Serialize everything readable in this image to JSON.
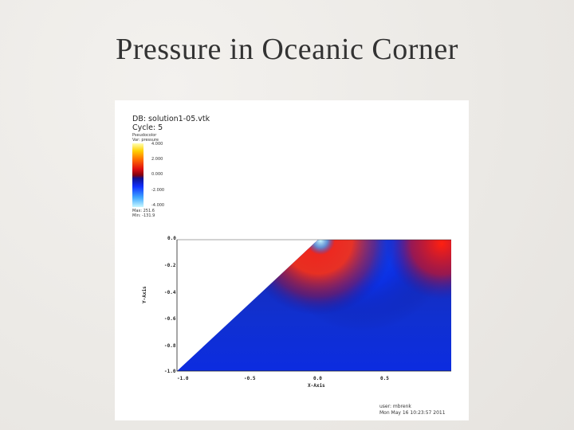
{
  "slide": {
    "title": "Pressure in Oceanic Corner"
  },
  "plot": {
    "db_label": "DB: solution1-05.vtk",
    "cycle_label": "Cycle: 5",
    "variable_lines": [
      "Pseudocolor",
      "Var: pressure"
    ],
    "legend_ticks": [
      "4.000",
      "2.000",
      "0.000",
      "-2.000",
      "-4.000"
    ],
    "max_label": "Max: 251.6",
    "min_label": "Min: -131.9",
    "x_axis_title": "X-Axis",
    "y_axis_title": "Y-Axis",
    "x_ticks": [
      "-1.0",
      "-0.5",
      "0.0",
      "0.5"
    ],
    "y_ticks": [
      "0.0",
      "-0.2",
      "-0.4",
      "-0.6",
      "-0.8",
      "-1.0"
    ],
    "user_line": "user: mbrenk",
    "date_line": "Mon May 16 10:23:57 2011"
  }
}
